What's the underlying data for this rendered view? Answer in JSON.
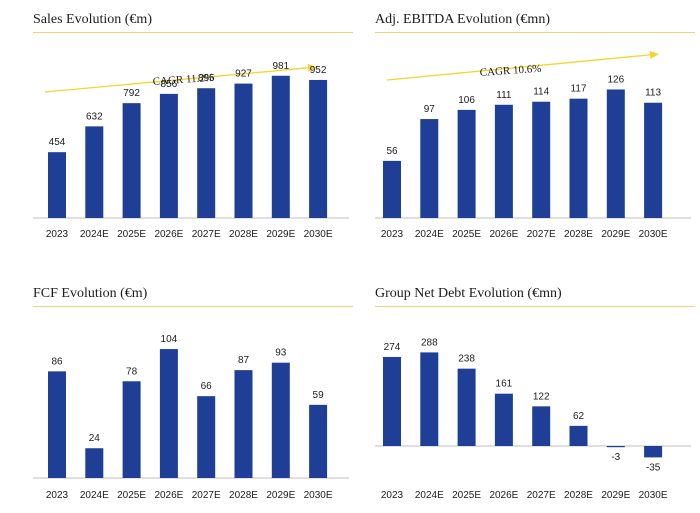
{
  "colors": {
    "bar": "#1f3f96",
    "rule": "#e8d57a",
    "axis": "#bfbfbf",
    "arrow": "#f2d531"
  },
  "chart_data": [
    {
      "type": "bar",
      "title": "Sales Evolution (€m)",
      "annotation": "CAGR 11.2%",
      "categories": [
        "2023",
        "2024E",
        "2025E",
        "2026E",
        "2027E",
        "2028E",
        "2029E",
        "2030E"
      ],
      "values": [
        454,
        632,
        792,
        856,
        895,
        927,
        981,
        952
      ]
    },
    {
      "type": "bar",
      "title": "Adj. EBITDA Evolution (€mn)",
      "annotation": "CAGR 10.6%",
      "categories": [
        "2023",
        "2024E",
        "2025E",
        "2026E",
        "2027E",
        "2028E",
        "2029E",
        "2030E"
      ],
      "values": [
        56,
        97,
        106,
        111,
        114,
        117,
        126,
        113
      ]
    },
    {
      "type": "bar",
      "title": "FCF Evolution (€m)",
      "categories": [
        "2023",
        "2024E",
        "2025E",
        "2026E",
        "2027E",
        "2028E",
        "2029E",
        "2030E"
      ],
      "values": [
        86,
        24,
        78,
        104,
        66,
        87,
        93,
        59
      ]
    },
    {
      "type": "bar",
      "title": "Group Net Debt Evolution (€mn)",
      "categories": [
        "2023",
        "2024E",
        "2025E",
        "2026E",
        "2027E",
        "2028E",
        "2029E",
        "2030E"
      ],
      "values": [
        274,
        288,
        238,
        161,
        122,
        62,
        -3,
        -35
      ]
    }
  ]
}
